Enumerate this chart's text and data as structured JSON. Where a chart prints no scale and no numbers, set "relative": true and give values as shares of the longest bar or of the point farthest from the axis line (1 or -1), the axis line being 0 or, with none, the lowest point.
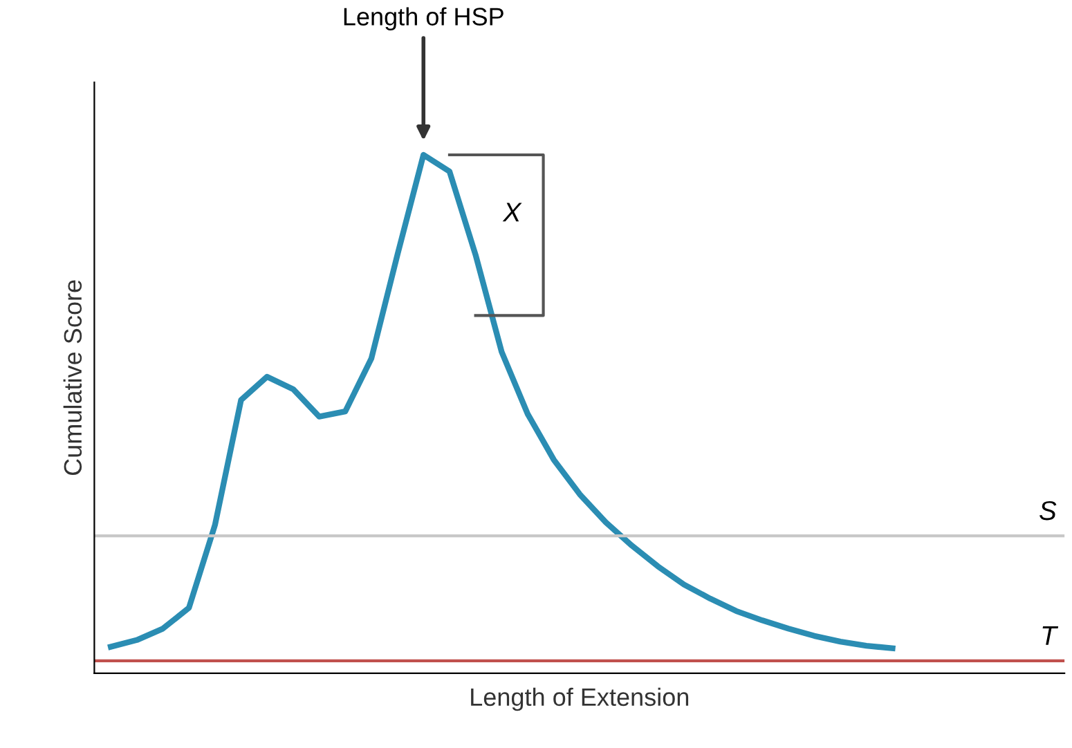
{
  "chart_data": {
    "type": "line",
    "relative": true,
    "xlabel": "Length of Extension",
    "ylabel": "Cumulative Score",
    "categories": [
      null,
      null,
      null,
      null,
      null,
      null,
      null,
      null,
      null,
      null,
      null,
      null,
      null,
      null,
      null,
      null,
      null,
      null,
      null,
      null,
      null,
      null,
      null,
      null,
      null,
      null,
      null,
      null,
      null,
      null,
      null
    ],
    "series": [
      {
        "color": "#2b8db3",
        "values": [
          0.051,
          0.064,
          0.086,
          0.126,
          0.286,
          0.527,
          0.572,
          0.548,
          0.495,
          0.505,
          0.607,
          0.807,
          1.0,
          0.968,
          0.807,
          0.62,
          0.5,
          0.412,
          0.345,
          0.291,
          0.246,
          0.206,
          0.171,
          0.144,
          0.12,
          0.102,
          0.086,
          0.072,
          0.061,
          0.053,
          0.048
        ]
      }
    ],
    "ref_lines": [
      {
        "axis": "y",
        "value": 0.265,
        "label": "S",
        "color": "#c8c8c8"
      },
      {
        "axis": "y",
        "value": 0.024,
        "label": "T",
        "color": "#c0504d"
      }
    ],
    "annotations": [
      "Length of HSP",
      "X"
    ],
    "grid": false,
    "legend": false,
    "marker": "none",
    "line_style": "solid"
  }
}
